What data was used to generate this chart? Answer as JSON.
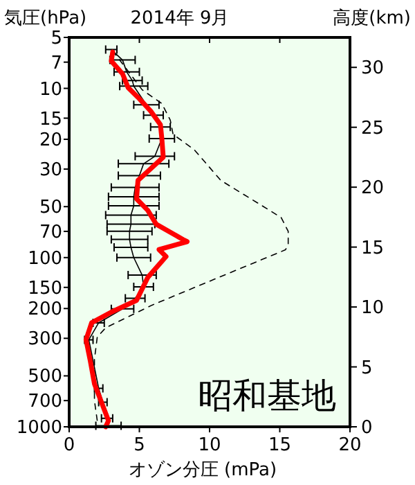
{
  "chart_data": {
    "type": "line",
    "title": "2014年 9月",
    "ylabel": "気圧(hPa)",
    "y2label": "高度(km)",
    "xlabel": "オゾン分圧 (mPa)",
    "annotations": [
      "昭和基地"
    ],
    "xlim": [
      0,
      20
    ],
    "xticks": [
      0,
      5,
      10,
      15,
      20
    ],
    "ylim": [
      1000,
      5
    ],
    "yticks": [
      5,
      7,
      10,
      15,
      20,
      30,
      50,
      70,
      100,
      150,
      200,
      300,
      500,
      700,
      1000
    ],
    "log": "y",
    "y2lim": [
      0,
      32.5
    ],
    "y2ticks": [
      0,
      5,
      10,
      15,
      20,
      25,
      30
    ],
    "grid": false,
    "marker": "none",
    "series": [
      {
        "color": "#000000",
        "line_style": "dashed",
        "x": [
          3.1,
          5.2,
          6.6,
          7.2,
          7.4,
          8.9,
          10.8,
          13.5,
          15.1,
          15.6,
          15.6,
          15.4,
          9.9,
          5.9,
          2.6,
          2.0,
          1.8,
          1.8,
          2.0
        ],
        "values": [
          6,
          10.2,
          12.3,
          15.4,
          18.7,
          23,
          35,
          48,
          58,
          70,
          84,
          90,
          139,
          191,
          260,
          295,
          400,
          700,
          920
        ]
      },
      {
        "color": "#000000",
        "line_style": "solid",
        "x": [
          3.0,
          3.8,
          4.1,
          4.5,
          4.6,
          5.5,
          6.0,
          6.5,
          6.6,
          6.1,
          5.3,
          5.0,
          4.7,
          4.6,
          4.6,
          4.4,
          4.4,
          4.3,
          4.3,
          4.4,
          4.6,
          5.2,
          5.3,
          4.7,
          3.8,
          2.1,
          1.4,
          2.1,
          2.4,
          2.7,
          2.8
        ],
        "values": [
          5.9,
          6.8,
          8,
          9,
          9.7,
          12.5,
          14.4,
          16.9,
          19.8,
          25.2,
          27.9,
          32.8,
          38.5,
          43.7,
          49.4,
          56.1,
          63.5,
          69.8,
          78,
          87,
          100,
          127,
          149,
          174,
          201,
          243,
          306,
          592,
          716,
          890,
          985
        ],
        "xerrors": [
          0.4,
          0.9,
          0.9,
          0.7,
          1.0,
          0.9,
          0.7,
          0.7,
          0.9,
          1.4,
          1.8,
          1.5,
          1.7,
          1.8,
          1.8,
          1.8,
          1.7,
          1.6,
          1.3,
          1.2,
          1.2,
          1.0,
          0.7,
          0.7,
          0.8,
          0.4,
          0.3,
          0.3,
          0.3,
          0.4,
          0.9
        ]
      },
      {
        "color": "#ff0000",
        "line_style": "solid",
        "x": [
          3.1,
          3.0,
          3.8,
          4.2,
          4.9,
          5.8,
          6.5,
          6.6,
          6.7,
          4.9,
          4.8,
          5.6,
          5.9,
          6.2,
          8.2,
          8.4,
          6.4,
          6.9,
          5.6,
          4.8,
          3.0,
          1.6,
          1.2,
          1.5,
          1.8,
          2.3,
          2.8,
          2.6
        ],
        "values": [
          6.1,
          6.9,
          8.2,
          9.9,
          11.3,
          13.6,
          16.4,
          19.8,
          25.5,
          35,
          45,
          52.6,
          57.8,
          63.5,
          79,
          80.5,
          89.7,
          98.6,
          131,
          179,
          210,
          243,
          306,
          406,
          557,
          716,
          920,
          1000
        ]
      }
    ]
  }
}
